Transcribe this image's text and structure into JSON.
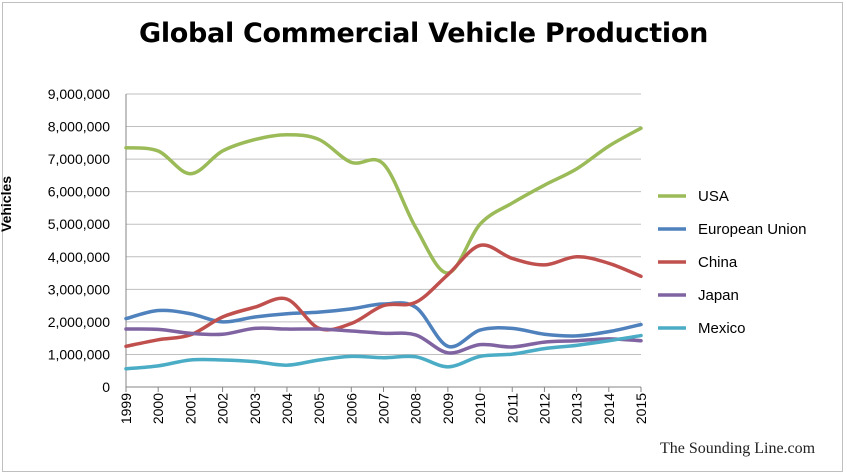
{
  "chart_data": {
    "type": "line",
    "title": "Global Commercial Vehicle Production",
    "ylabel": "Vehicles",
    "xlabel": "",
    "x": [
      "1999",
      "2000",
      "2001",
      "2002",
      "2003",
      "2004",
      "2005",
      "2006",
      "2007",
      "2008",
      "2009",
      "2010",
      "2011",
      "2012",
      "2013",
      "2014",
      "2015"
    ],
    "yticks": [
      "0",
      "1,000,000",
      "2,000,000",
      "3,000,000",
      "4,000,000",
      "5,000,000",
      "6,000,000",
      "7,000,000",
      "8,000,000",
      "9,000,000"
    ],
    "ylim": [
      0,
      9000000
    ],
    "grid": true,
    "legend_position": "right",
    "series": [
      {
        "name": "USA",
        "color": "#9bbb59",
        "values": [
          7350000,
          7250000,
          6550000,
          7250000,
          7600000,
          7750000,
          7600000,
          6900000,
          6850000,
          4900000,
          3500000,
          5000000,
          5650000,
          6200000,
          6700000,
          7400000,
          7950000
        ]
      },
      {
        "name": "European Union",
        "color": "#4f81bd",
        "values": [
          2100000,
          2350000,
          2250000,
          2000000,
          2150000,
          2250000,
          2300000,
          2400000,
          2550000,
          2450000,
          1250000,
          1750000,
          1800000,
          1620000,
          1570000,
          1700000,
          1920000
        ]
      },
      {
        "name": "China",
        "color": "#c0504d",
        "values": [
          1250000,
          1450000,
          1600000,
          2150000,
          2450000,
          2700000,
          1800000,
          1950000,
          2500000,
          2600000,
          3450000,
          4350000,
          3950000,
          3750000,
          4000000,
          3800000,
          3400000
        ]
      },
      {
        "name": "Japan",
        "color": "#8064a2",
        "values": [
          1780000,
          1770000,
          1650000,
          1620000,
          1800000,
          1780000,
          1780000,
          1720000,
          1650000,
          1600000,
          1050000,
          1300000,
          1230000,
          1380000,
          1420000,
          1480000,
          1420000
        ]
      },
      {
        "name": "Mexico",
        "color": "#4bacc6",
        "values": [
          560000,
          650000,
          830000,
          830000,
          780000,
          670000,
          830000,
          940000,
          900000,
          930000,
          620000,
          940000,
          1010000,
          1180000,
          1280000,
          1420000,
          1580000
        ]
      }
    ]
  },
  "watermark": "The Sounding Line.com"
}
